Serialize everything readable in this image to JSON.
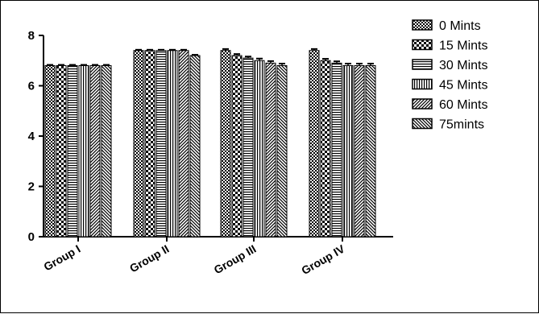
{
  "chart_data": {
    "type": "bar",
    "categories": [
      "Group I",
      "Group II",
      "Group III",
      "Group IV"
    ],
    "series": [
      {
        "name": "0 Mints",
        "values": [
          6.8,
          7.4,
          7.4,
          7.4
        ],
        "errors": [
          0.03,
          0.03,
          0.06,
          0.06
        ]
      },
      {
        "name": "15 Mints",
        "values": [
          6.8,
          7.4,
          7.2,
          7.0
        ],
        "errors": [
          0.03,
          0.03,
          0.06,
          0.07
        ]
      },
      {
        "name": "30 Mints",
        "values": [
          6.8,
          7.4,
          7.1,
          6.9
        ],
        "errors": [
          0.03,
          0.03,
          0.06,
          0.07
        ]
      },
      {
        "name": "45 Mints",
        "values": [
          6.8,
          7.4,
          7.0,
          6.8
        ],
        "errors": [
          0.03,
          0.03,
          0.08,
          0.08
        ]
      },
      {
        "name": "60 Mints",
        "values": [
          6.8,
          7.4,
          6.9,
          6.8
        ],
        "errors": [
          0.03,
          0.03,
          0.08,
          0.08
        ]
      },
      {
        "name": "75mints",
        "values": [
          6.8,
          7.2,
          6.8,
          6.8
        ],
        "errors": [
          0.03,
          0.03,
          0.08,
          0.08
        ]
      }
    ],
    "ylim": [
      0,
      8
    ],
    "yticks": [
      "0",
      "2",
      "4",
      "6",
      "8"
    ],
    "title": "",
    "xlabel": "",
    "ylabel": "",
    "legend_position": "right",
    "grid": false,
    "error_bars": true
  }
}
